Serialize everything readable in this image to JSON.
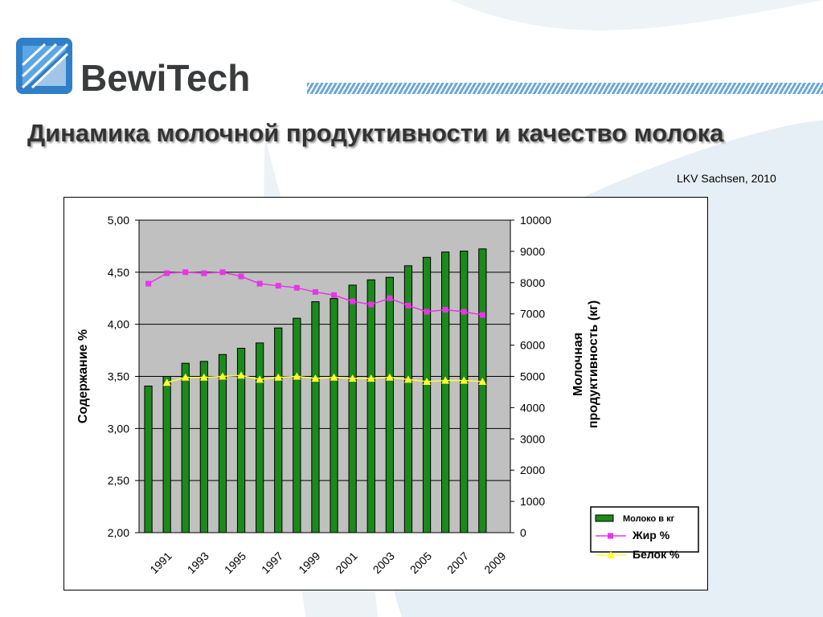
{
  "brand": {
    "name_part1": "Bewi",
    "name_part2": "Tech"
  },
  "slide": {
    "title": "Динамика молочной продуктивности и качество молока",
    "source": "LKV Sachsen, 2010"
  },
  "colors": {
    "bars": "#1a8a1a",
    "fat": "#e636e6",
    "protein": "#ffff33",
    "plot_bg": "#c0c0c0",
    "logo": "#2f7fc9"
  },
  "chart_data": {
    "type": "bar+line",
    "title": "",
    "x": [
      1991,
      1992,
      1993,
      1994,
      1995,
      1996,
      1997,
      1998,
      1999,
      2000,
      2001,
      2002,
      2003,
      2004,
      2005,
      2006,
      2007,
      2008,
      2009,
      2010
    ],
    "x_tick_labels": [
      "1991",
      "1993",
      "1995",
      "1997",
      "1999",
      "2001",
      "2003",
      "2005",
      "2007",
      "2009"
    ],
    "y_left": {
      "label": "Содержание  %",
      "range": [
        2.0,
        5.0
      ],
      "tick_labels": [
        "2,00",
        "2,50",
        "3,00",
        "3,50",
        "4,00",
        "4,50",
        "5,00"
      ]
    },
    "y_right": {
      "label_line1": "Молочная",
      "label_line2": "продуктивность (кг)",
      "range": [
        0,
        10000
      ],
      "tick_labels": [
        "0",
        "1000",
        "2000",
        "3000",
        "4000",
        "5000",
        "6000",
        "7000",
        "8000",
        "9000",
        "10000"
      ]
    },
    "series": [
      {
        "name": "Молоко в кг",
        "type": "bar",
        "axis": "right",
        "values": [
          4690,
          5000,
          5420,
          5480,
          5700,
          5900,
          6070,
          6550,
          6860,
          7390,
          7490,
          7920,
          8090,
          8170,
          8540,
          8810,
          8980,
          9010,
          9080,
          0
        ]
      },
      {
        "name": "Жир %",
        "type": "line",
        "axis": "left",
        "values": [
          4.39,
          4.49,
          4.5,
          4.49,
          4.5,
          4.46,
          4.39,
          4.37,
          4.35,
          4.31,
          4.28,
          4.22,
          4.19,
          4.25,
          4.18,
          4.12,
          4.14,
          4.12,
          4.09,
          null
        ]
      },
      {
        "name": "Белок %",
        "type": "line",
        "axis": "left",
        "values": [
          null,
          3.44,
          3.49,
          3.49,
          3.5,
          3.51,
          3.47,
          3.49,
          3.5,
          3.48,
          3.49,
          3.48,
          3.48,
          3.49,
          3.47,
          3.45,
          3.46,
          3.46,
          3.45,
          null
        ]
      }
    ],
    "legend_position": "bottom-right",
    "grid": true
  }
}
